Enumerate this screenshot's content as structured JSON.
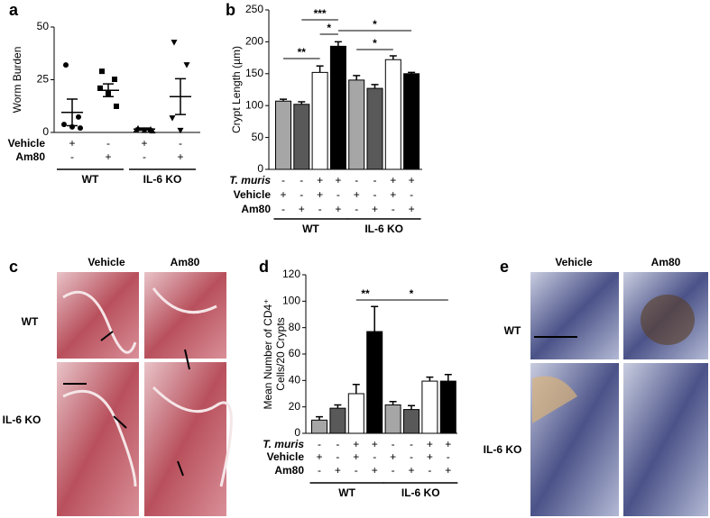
{
  "panel_labels": [
    "a",
    "b",
    "c",
    "d",
    "e"
  ],
  "chart_data": [
    {
      "type": "dot",
      "ylabel": "Worm Burden",
      "ylim": [
        0,
        50
      ],
      "yticks": [
        0,
        25,
        50
      ],
      "series": [
        {
          "marker": "circle",
          "points": [
            32,
            7.3,
            3.8,
            2.6,
            2.1
          ],
          "mean": 9.5,
          "error": 6.3
        },
        {
          "marker": "square",
          "points": [
            29,
            25.2,
            21,
            18.4,
            12.4
          ],
          "mean": 20,
          "error": 3
        },
        {
          "marker": "triangle",
          "points": [
            2,
            1.5,
            1.2,
            1,
            0.8
          ],
          "mean": 1.6,
          "error": 0.5
        },
        {
          "marker": "triangle-down",
          "points": [
            42.7,
            32,
            6.8,
            0.9
          ],
          "mean": 17,
          "error": 8.5
        }
      ],
      "conditions": [
        {
          "name": "Vehicle",
          "values": [
            "+",
            "-",
            "+",
            "-"
          ]
        },
        {
          "name": "Am80",
          "values": [
            "-",
            "+",
            "-",
            "+"
          ]
        }
      ],
      "groups": [
        {
          "label": "WT",
          "span": [
            0,
            1
          ]
        },
        {
          "label": "IL-6 KO",
          "span": [
            2,
            3
          ]
        }
      ]
    },
    {
      "type": "bar",
      "ylabel": "Crypt Length (µm)",
      "ylim": [
        0,
        250
      ],
      "yticks": [
        0,
        50,
        100,
        150,
        200,
        250
      ],
      "values": [
        107,
        102,
        152,
        193,
        140,
        127,
        172,
        150
      ],
      "errors": [
        3,
        4,
        10,
        7,
        7,
        6,
        6,
        2
      ],
      "colors": [
        "#a6a6a6",
        "#595959",
        "#ffffff",
        "#000000",
        "#a6a6a6",
        "#595959",
        "#ffffff",
        "#000000"
      ],
      "conditions": [
        {
          "name": "T. muris",
          "italic": true,
          "values": [
            "-",
            "-",
            "+",
            "+",
            "-",
            "-",
            "+",
            "+"
          ]
        },
        {
          "name": "Vehicle",
          "values": [
            "+",
            "-",
            "+",
            "-",
            "+",
            "-",
            "+",
            "-"
          ]
        },
        {
          "name": "Am80",
          "values": [
            "-",
            "+",
            "-",
            "+",
            "-",
            "+",
            "-",
            "+"
          ]
        }
      ],
      "groups": [
        {
          "label": "WT",
          "span": [
            0,
            3
          ]
        },
        {
          "label": "IL-6 KO",
          "span": [
            4,
            7
          ]
        }
      ],
      "significance": [
        {
          "from": 0,
          "to": 2,
          "label": "**"
        },
        {
          "from": 1,
          "to": 3,
          "label": "***"
        },
        {
          "from": 2,
          "to": 3,
          "label": "*"
        },
        {
          "from": 3,
          "to": 7,
          "label": "*"
        },
        {
          "from": 4,
          "to": 6,
          "label": "*"
        }
      ]
    },
    {
      "type": "bar",
      "ylabel": [
        "Mean Number of CD4⁺",
        "Cells/20 Crypts"
      ],
      "ylim": [
        0,
        120
      ],
      "yticks": [
        0,
        20,
        40,
        60,
        80,
        100,
        120
      ],
      "values": [
        10,
        19,
        30,
        77,
        21.5,
        18,
        39.5,
        39.5
      ],
      "errors": [
        2.5,
        2.5,
        7,
        19,
        2.5,
        3,
        3,
        5
      ],
      "colors": [
        "#a6a6a6",
        "#595959",
        "#ffffff",
        "#000000",
        "#a6a6a6",
        "#595959",
        "#ffffff",
        "#000000"
      ],
      "conditions": [
        {
          "name": "T. muris",
          "italic": true,
          "values": [
            "-",
            "-",
            "+",
            "+",
            "-",
            "-",
            "+",
            "+"
          ]
        },
        {
          "name": "Vehicle",
          "values": [
            "+",
            "-",
            "+",
            "-",
            "+",
            "-",
            "+",
            "-"
          ]
        },
        {
          "name": "Am80",
          "values": [
            "-",
            "+",
            "-",
            "+",
            "-",
            "+",
            "-",
            "+"
          ]
        }
      ],
      "groups": [
        {
          "label": "WT",
          "span": [
            0,
            3
          ]
        },
        {
          "label": "IL-6 KO",
          "span": [
            4,
            7
          ]
        }
      ],
      "significance": [
        {
          "from": 2,
          "to": 3,
          "label": "**"
        },
        {
          "from": 3,
          "to": 7,
          "label": "*"
        }
      ]
    }
  ],
  "images": [
    {
      "columns": [
        "Vehicle",
        "Am80"
      ],
      "rows": [
        "WT",
        "IL-6 KO"
      ]
    },
    {
      "columns": [
        "Vehicle",
        "Am80"
      ],
      "rows": [
        "WT",
        "IL-6 KO"
      ]
    }
  ]
}
